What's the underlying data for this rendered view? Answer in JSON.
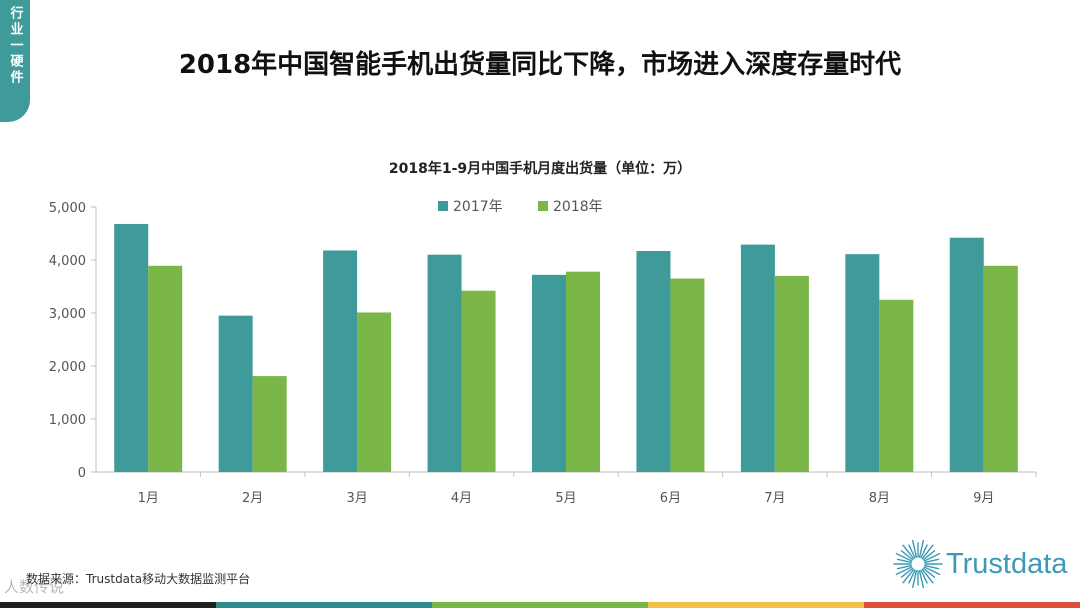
{
  "side_tab": {
    "label": "行业一硬件"
  },
  "main_title": "2018年中国智能手机出货量同比下降，市场进入深度存量时代",
  "source": "数据来源：Trustdata移动大数据监测平台",
  "logo": {
    "text": "Trustdata",
    "color": "#3a9ab7"
  },
  "watermark": "人数传说",
  "bottom_bar_colors": [
    "#1f1f1f",
    "#2e8c8c",
    "#7ab648",
    "#f0c04a",
    "#e0503f"
  ],
  "chart_data": {
    "type": "bar",
    "title": "2018年1-9月中国手机月度出货量（单位：万）",
    "categories": [
      "1月",
      "2月",
      "3月",
      "4月",
      "5月",
      "6月",
      "7月",
      "8月",
      "9月"
    ],
    "series": [
      {
        "name": "2017年",
        "color": "#3f9a9a",
        "values": [
          4680,
          2950,
          4180,
          4100,
          3720,
          4170,
          4290,
          4110,
          4420
        ]
      },
      {
        "name": "2018年",
        "color": "#7ab648",
        "values": [
          3890,
          1810,
          3010,
          3420,
          3780,
          3650,
          3700,
          3250,
          3890
        ]
      }
    ],
    "ylim": [
      0,
      5000
    ],
    "yticks": [
      0,
      1000,
      2000,
      3000,
      4000,
      5000
    ],
    "ytick_labels": [
      "0",
      "1,000",
      "2,000",
      "3,000",
      "4,000",
      "5,000"
    ],
    "legend_position": "top-center",
    "grid": false
  }
}
